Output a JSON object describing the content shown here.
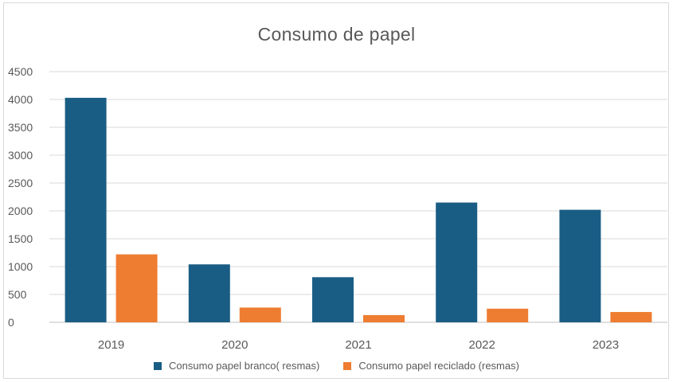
{
  "chart_data": {
    "type": "bar",
    "title": "Consumo de papel",
    "xlabel": "",
    "ylabel": "",
    "categories": [
      "2019",
      "2020",
      "2021",
      "2022",
      "2023"
    ],
    "ylim": [
      0,
      4500
    ],
    "yticks": [
      0,
      500,
      1000,
      1500,
      2000,
      2500,
      3000,
      3500,
      4000,
      4500
    ],
    "grid": true,
    "legend_position": "bottom",
    "series": [
      {
        "name": "Consumo papel branco( resmas)",
        "color": "#1a5d84",
        "values": [
          4030,
          1040,
          810,
          2150,
          2020
        ]
      },
      {
        "name": "Consumo papel reciclado (resmas)",
        "color": "#ee7d31",
        "values": [
          1220,
          265,
          130,
          245,
          185
        ]
      }
    ]
  }
}
